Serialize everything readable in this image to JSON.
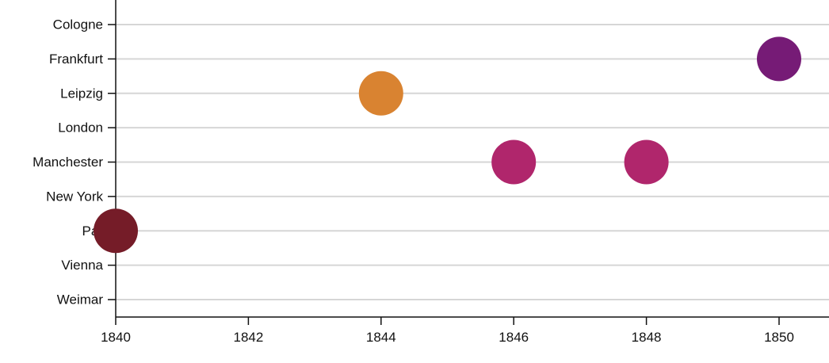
{
  "chart_data": {
    "type": "scatter",
    "y_categories": [
      "Cologne",
      "Frankfurt",
      "Leipzig",
      "London",
      "Manchester",
      "New York",
      "Par",
      "Vienna",
      "Weimar"
    ],
    "x_ticks": [
      1840,
      1842,
      1844,
      1846,
      1848,
      1850
    ],
    "x_tick_labels": [
      "1840",
      "1842",
      "1844",
      "1846",
      "1848",
      "1850"
    ],
    "xlim": [
      1840,
      1850.8
    ],
    "grid": "horizontal",
    "points": [
      {
        "x": 1840,
        "y": "Par",
        "color": "#751c28"
      },
      {
        "x": 1844,
        "y": "Leipzig",
        "color": "#d98331"
      },
      {
        "x": 1846,
        "y": "Manchester",
        "color": "#b0266c"
      },
      {
        "x": 1848,
        "y": "Manchester",
        "color": "#b0266c"
      },
      {
        "x": 1850,
        "y": "Frankfurt",
        "color": "#761b76"
      }
    ],
    "colors": {
      "grid": "#d6d6d6",
      "axis": "#111111"
    }
  }
}
